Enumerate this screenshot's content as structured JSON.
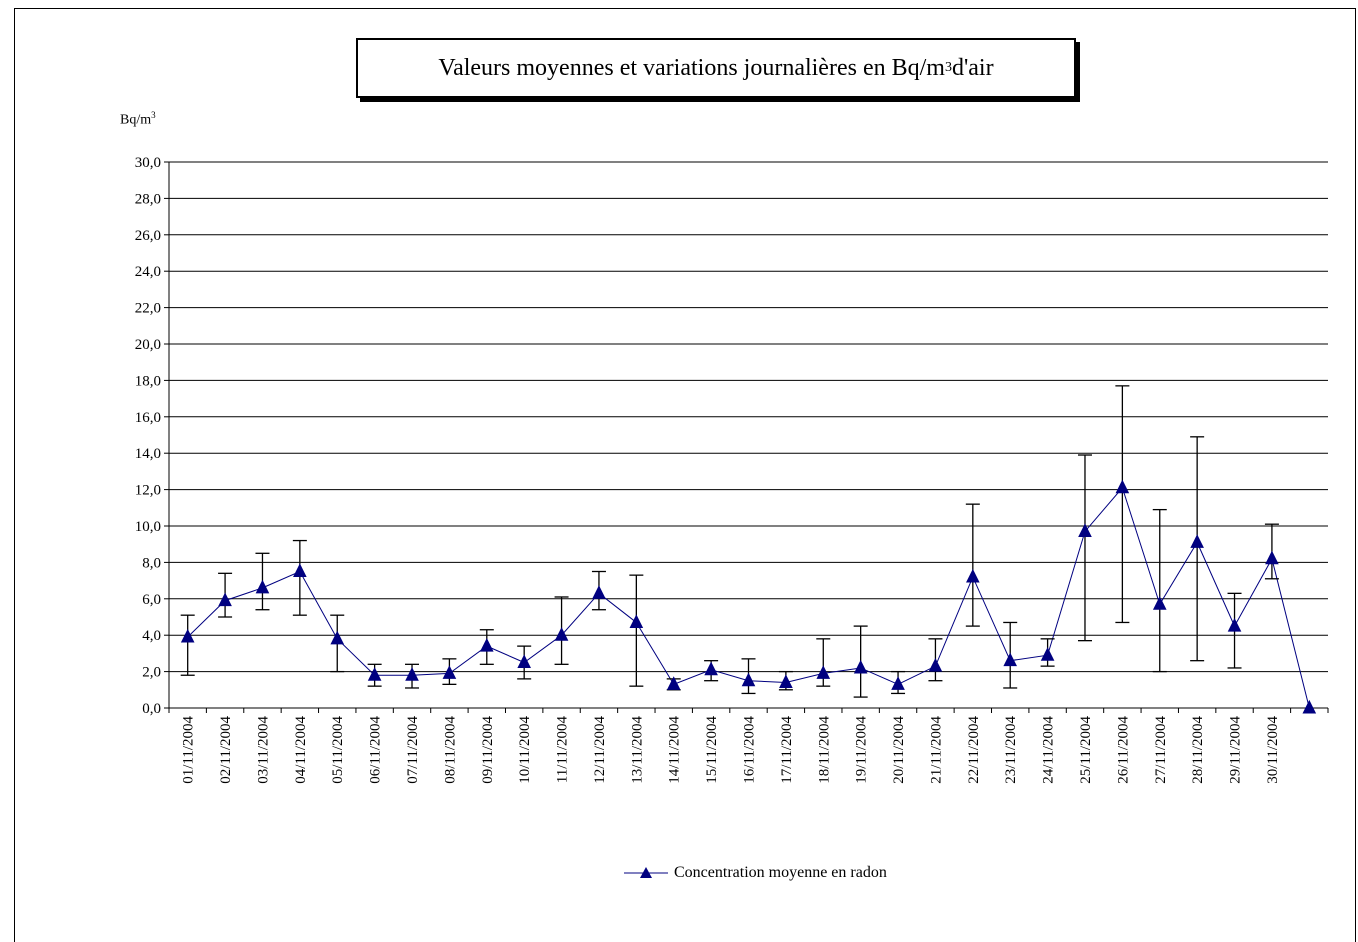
{
  "chart_data": {
    "type": "line",
    "title_main": "Valeurs moyennes et variations journalières en Bq/m",
    "title_sup": "3",
    "title_tail": " d'air",
    "ylabel_main": "Bq/m",
    "ylabel_sup": "3",
    "ylim": [
      0,
      30
    ],
    "ytick_step": 2,
    "ytick_labels": [
      "0,0",
      "2,0",
      "4,0",
      "6,0",
      "8,0",
      "10,0",
      "12,0",
      "14,0",
      "16,0",
      "18,0",
      "20,0",
      "22,0",
      "24,0",
      "26,0",
      "28,0",
      "30,0"
    ],
    "categories": [
      "01/11/2004",
      "02/11/2004",
      "03/11/2004",
      "04/11/2004",
      "05/11/2004",
      "06/11/2004",
      "07/11/2004",
      "08/11/2004",
      "09/11/2004",
      "10/11/2004",
      "11/11/2004",
      "12/11/2004",
      "13/11/2004",
      "14/11/2004",
      "15/11/2004",
      "16/11/2004",
      "17/11/2004",
      "18/11/2004",
      "19/11/2004",
      "20/11/2004",
      "21/11/2004",
      "22/11/2004",
      "23/11/2004",
      "24/11/2004",
      "25/11/2004",
      "26/11/2004",
      "27/11/2004",
      "28/11/2004",
      "29/11/2004",
      "30/11/2004",
      ""
    ],
    "series": [
      {
        "name": "Concentration moyenne en radon",
        "color": "#000080",
        "values": [
          3.9,
          5.9,
          6.6,
          7.5,
          3.8,
          1.8,
          1.8,
          1.9,
          3.4,
          2.5,
          4.0,
          6.3,
          4.7,
          1.3,
          2.1,
          1.5,
          1.4,
          1.9,
          2.2,
          1.3,
          2.3,
          7.2,
          2.6,
          2.9,
          9.7,
          12.1,
          5.7,
          9.1,
          4.5,
          8.2,
          0.0
        ],
        "error_high": [
          5.1,
          7.4,
          8.5,
          9.2,
          5.1,
          2.4,
          2.4,
          2.7,
          4.3,
          3.4,
          6.1,
          7.5,
          7.3,
          1.6,
          2.6,
          2.7,
          2.0,
          3.8,
          4.5,
          2.0,
          3.8,
          11.2,
          4.7,
          3.8,
          13.9,
          17.7,
          10.9,
          14.9,
          6.3,
          10.1,
          null
        ],
        "error_low": [
          1.8,
          5.0,
          5.4,
          5.1,
          2.0,
          1.2,
          1.1,
          1.3,
          2.4,
          1.6,
          2.4,
          5.4,
          1.2,
          1.0,
          1.5,
          0.8,
          1.0,
          1.2,
          0.6,
          0.8,
          1.5,
          4.5,
          1.1,
          2.3,
          3.7,
          4.7,
          2.0,
          2.6,
          2.2,
          7.1,
          null
        ]
      }
    ],
    "grid": true,
    "legend_position": "bottom-center",
    "marker": "triangle"
  }
}
